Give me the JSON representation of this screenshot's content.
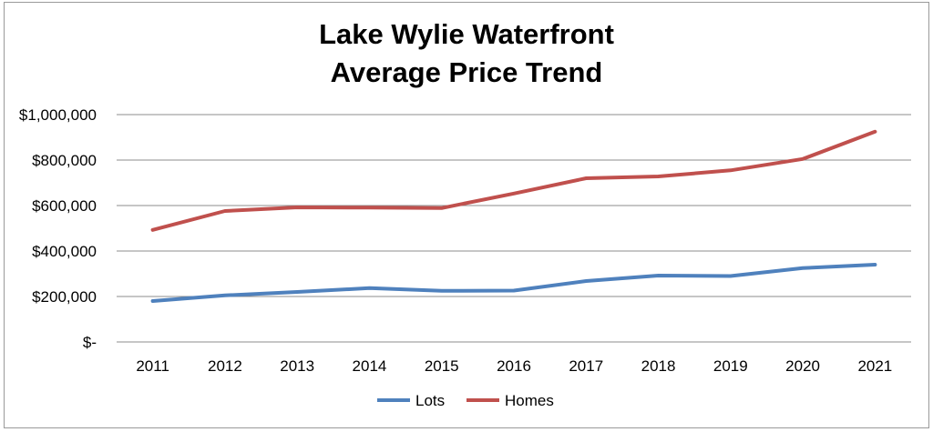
{
  "chart_data": {
    "type": "line",
    "title": "Lake Wylie Waterfront",
    "subtitle": "Average Price Trend",
    "xlabel": "",
    "ylabel": "",
    "categories": [
      "2011",
      "2012",
      "2013",
      "2014",
      "2015",
      "2016",
      "2017",
      "2018",
      "2019",
      "2020",
      "2021"
    ],
    "y_ticks": [
      0,
      200000,
      400000,
      600000,
      800000,
      1000000
    ],
    "y_tick_labels": [
      "$-",
      "$200,000",
      "$400,000",
      "$600,000",
      "$800,000",
      "$1,000,000"
    ],
    "ylim": [
      0,
      1000000
    ],
    "grid": true,
    "legend_position": "bottom",
    "series": [
      {
        "name": "Lots",
        "color": "#4f81bd",
        "values": [
          180000,
          205000,
          220000,
          237000,
          225000,
          226000,
          268000,
          292000,
          290000,
          325000,
          340000
        ]
      },
      {
        "name": "Homes",
        "color": "#c0504d",
        "values": [
          493000,
          576000,
          592000,
          591000,
          589000,
          653000,
          720000,
          728000,
          755000,
          805000,
          925000
        ]
      }
    ]
  }
}
